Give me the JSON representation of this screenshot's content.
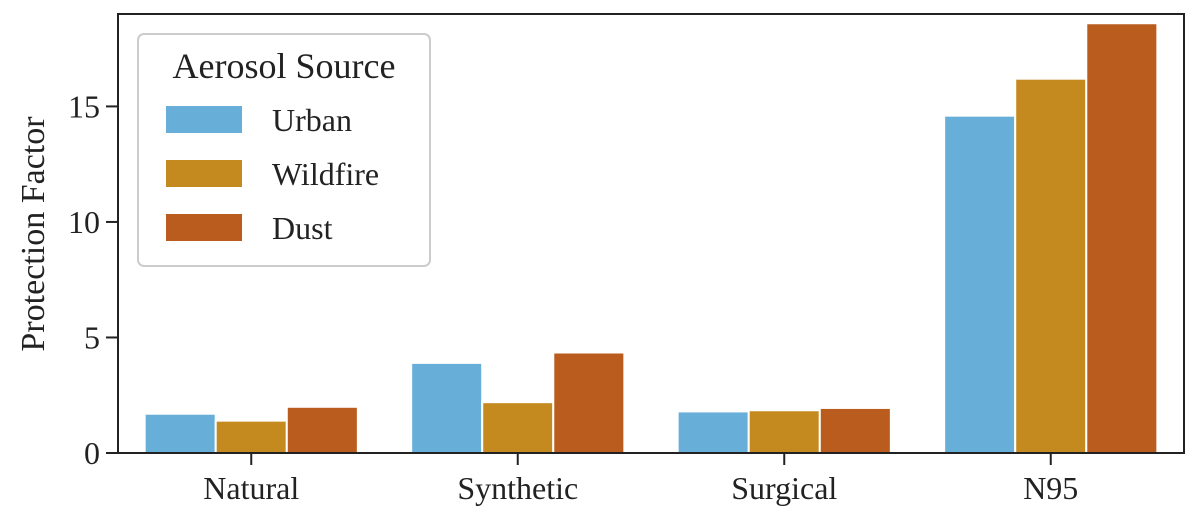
{
  "chart_data": {
    "type": "bar",
    "title": "",
    "xlabel": "",
    "ylabel": "Protection Factor",
    "categories": [
      "Natural",
      "Synthetic",
      "Surgical",
      "N95"
    ],
    "series": [
      {
        "name": "Urban",
        "color": "#67afd8",
        "values": [
          1.7,
          3.9,
          1.8,
          14.6
        ]
      },
      {
        "name": "Wildfire",
        "color": "#c4891f",
        "values": [
          1.4,
          2.2,
          1.85,
          16.2
        ]
      },
      {
        "name": "Dust",
        "color": "#b95c1d",
        "values": [
          2.0,
          4.35,
          1.95,
          18.6
        ]
      }
    ],
    "ylim": [
      0,
      19
    ],
    "yticks": [
      0,
      5,
      10,
      15
    ],
    "grid": false,
    "legend": {
      "title": "Aerosol Source",
      "placement": "top-left"
    }
  }
}
